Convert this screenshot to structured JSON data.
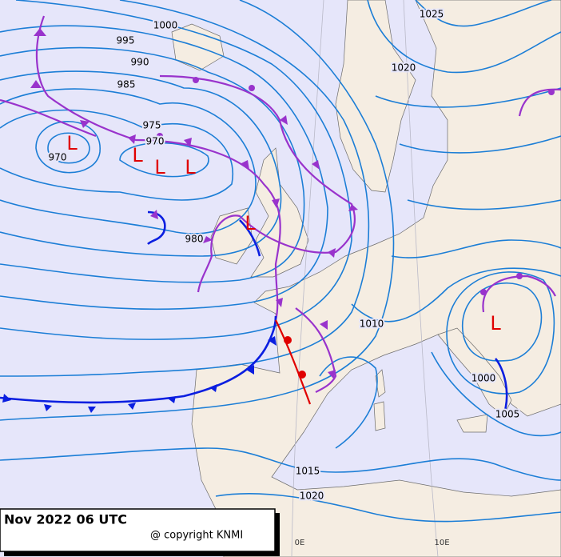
{
  "title": "Nov 2022 06 UTC",
  "copyright": "@ copyright KNMI",
  "isobar_labels": [
    1000,
    995,
    990,
    985,
    975,
    970,
    970,
    980,
    1025,
    1020,
    1010,
    1000,
    1005,
    1015,
    1020
  ],
  "pressure_centers": [
    "L",
    "L",
    "L",
    "L",
    "L",
    "L"
  ],
  "longitude_labels": [
    "0E",
    "10E"
  ]
}
